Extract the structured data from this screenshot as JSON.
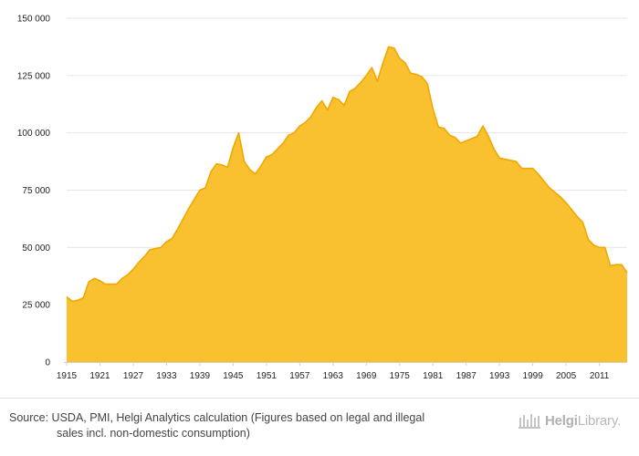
{
  "chart_data": {
    "type": "area",
    "title": "",
    "xlabel": "",
    "ylabel": "",
    "ylim": [
      0,
      150000
    ],
    "y_ticks": [
      "0",
      "25 000",
      "50 000",
      "75 000",
      "100 000",
      "125 000",
      "150 000"
    ],
    "x_ticks": [
      "1915",
      "1921",
      "1927",
      "1933",
      "1939",
      "1945",
      "1951",
      "1957",
      "1963",
      "1969",
      "1975",
      "1981",
      "1987",
      "1993",
      "1999",
      "2005",
      "2011"
    ],
    "grid": true,
    "legend": "none",
    "color": "#F9C030",
    "line_color": "#F0A800",
    "x": [
      1915,
      1916,
      1917,
      1918,
      1919,
      1920,
      1921,
      1922,
      1923,
      1924,
      1925,
      1926,
      1927,
      1928,
      1929,
      1930,
      1931,
      1932,
      1933,
      1934,
      1935,
      1936,
      1937,
      1938,
      1939,
      1940,
      1941,
      1942,
      1943,
      1944,
      1945,
      1946,
      1947,
      1948,
      1949,
      1950,
      1951,
      1952,
      1953,
      1954,
      1955,
      1956,
      1957,
      1958,
      1959,
      1960,
      1961,
      1962,
      1963,
      1964,
      1965,
      1966,
      1967,
      1968,
      1969,
      1970,
      1971,
      1972,
      1973,
      1974,
      1975,
      1976,
      1977,
      1978,
      1979,
      1980,
      1981,
      1982,
      1983,
      1984,
      1985,
      1986,
      1987,
      1988,
      1989,
      1990,
      1991,
      1992,
      1993,
      1994,
      1995,
      1996,
      1997,
      1998,
      1999,
      2000,
      2001,
      2002,
      2003,
      2004,
      2005,
      2006,
      2007,
      2008,
      2009,
      2010,
      2011,
      2012,
      2013,
      2014,
      2015,
      2016
    ],
    "values": [
      28500,
      26500,
      27000,
      28000,
      35000,
      36500,
      35500,
      34000,
      34000,
      34000,
      36500,
      38000,
      40500,
      43500,
      46000,
      49000,
      49500,
      50000,
      52500,
      54000,
      58000,
      62500,
      67000,
      71000,
      75000,
      76000,
      83000,
      86500,
      86000,
      85000,
      93500,
      100000,
      87500,
      84000,
      82000,
      85500,
      89500,
      90500,
      93000,
      95500,
      99000,
      100000,
      103000,
      104500,
      107000,
      111000,
      114000,
      110000,
      115500,
      114500,
      112000,
      118000,
      119500,
      122000,
      125000,
      128500,
      122500,
      130500,
      137500,
      137000,
      132500,
      130500,
      126000,
      125500,
      124500,
      121500,
      110500,
      102500,
      102000,
      99000,
      98000,
      95500,
      96500,
      97500,
      98500,
      103000,
      98500,
      93000,
      89000,
      88500,
      88000,
      87500,
      84500,
      84500,
      84500,
      82000,
      79000,
      76000,
      74000,
      72000,
      69500,
      66500,
      63500,
      61000,
      53500,
      51000,
      50000,
      50000,
      42000,
      42500,
      42500,
      39000
    ]
  },
  "footer": {
    "source_line1": "Source: USDA, PMI, Helgi Analytics calculation (Figures based on legal and illegal",
    "source_line2": "sales incl. non-domestic consumption)",
    "logo_bold": "Helgi",
    "logo_light": "Library."
  }
}
